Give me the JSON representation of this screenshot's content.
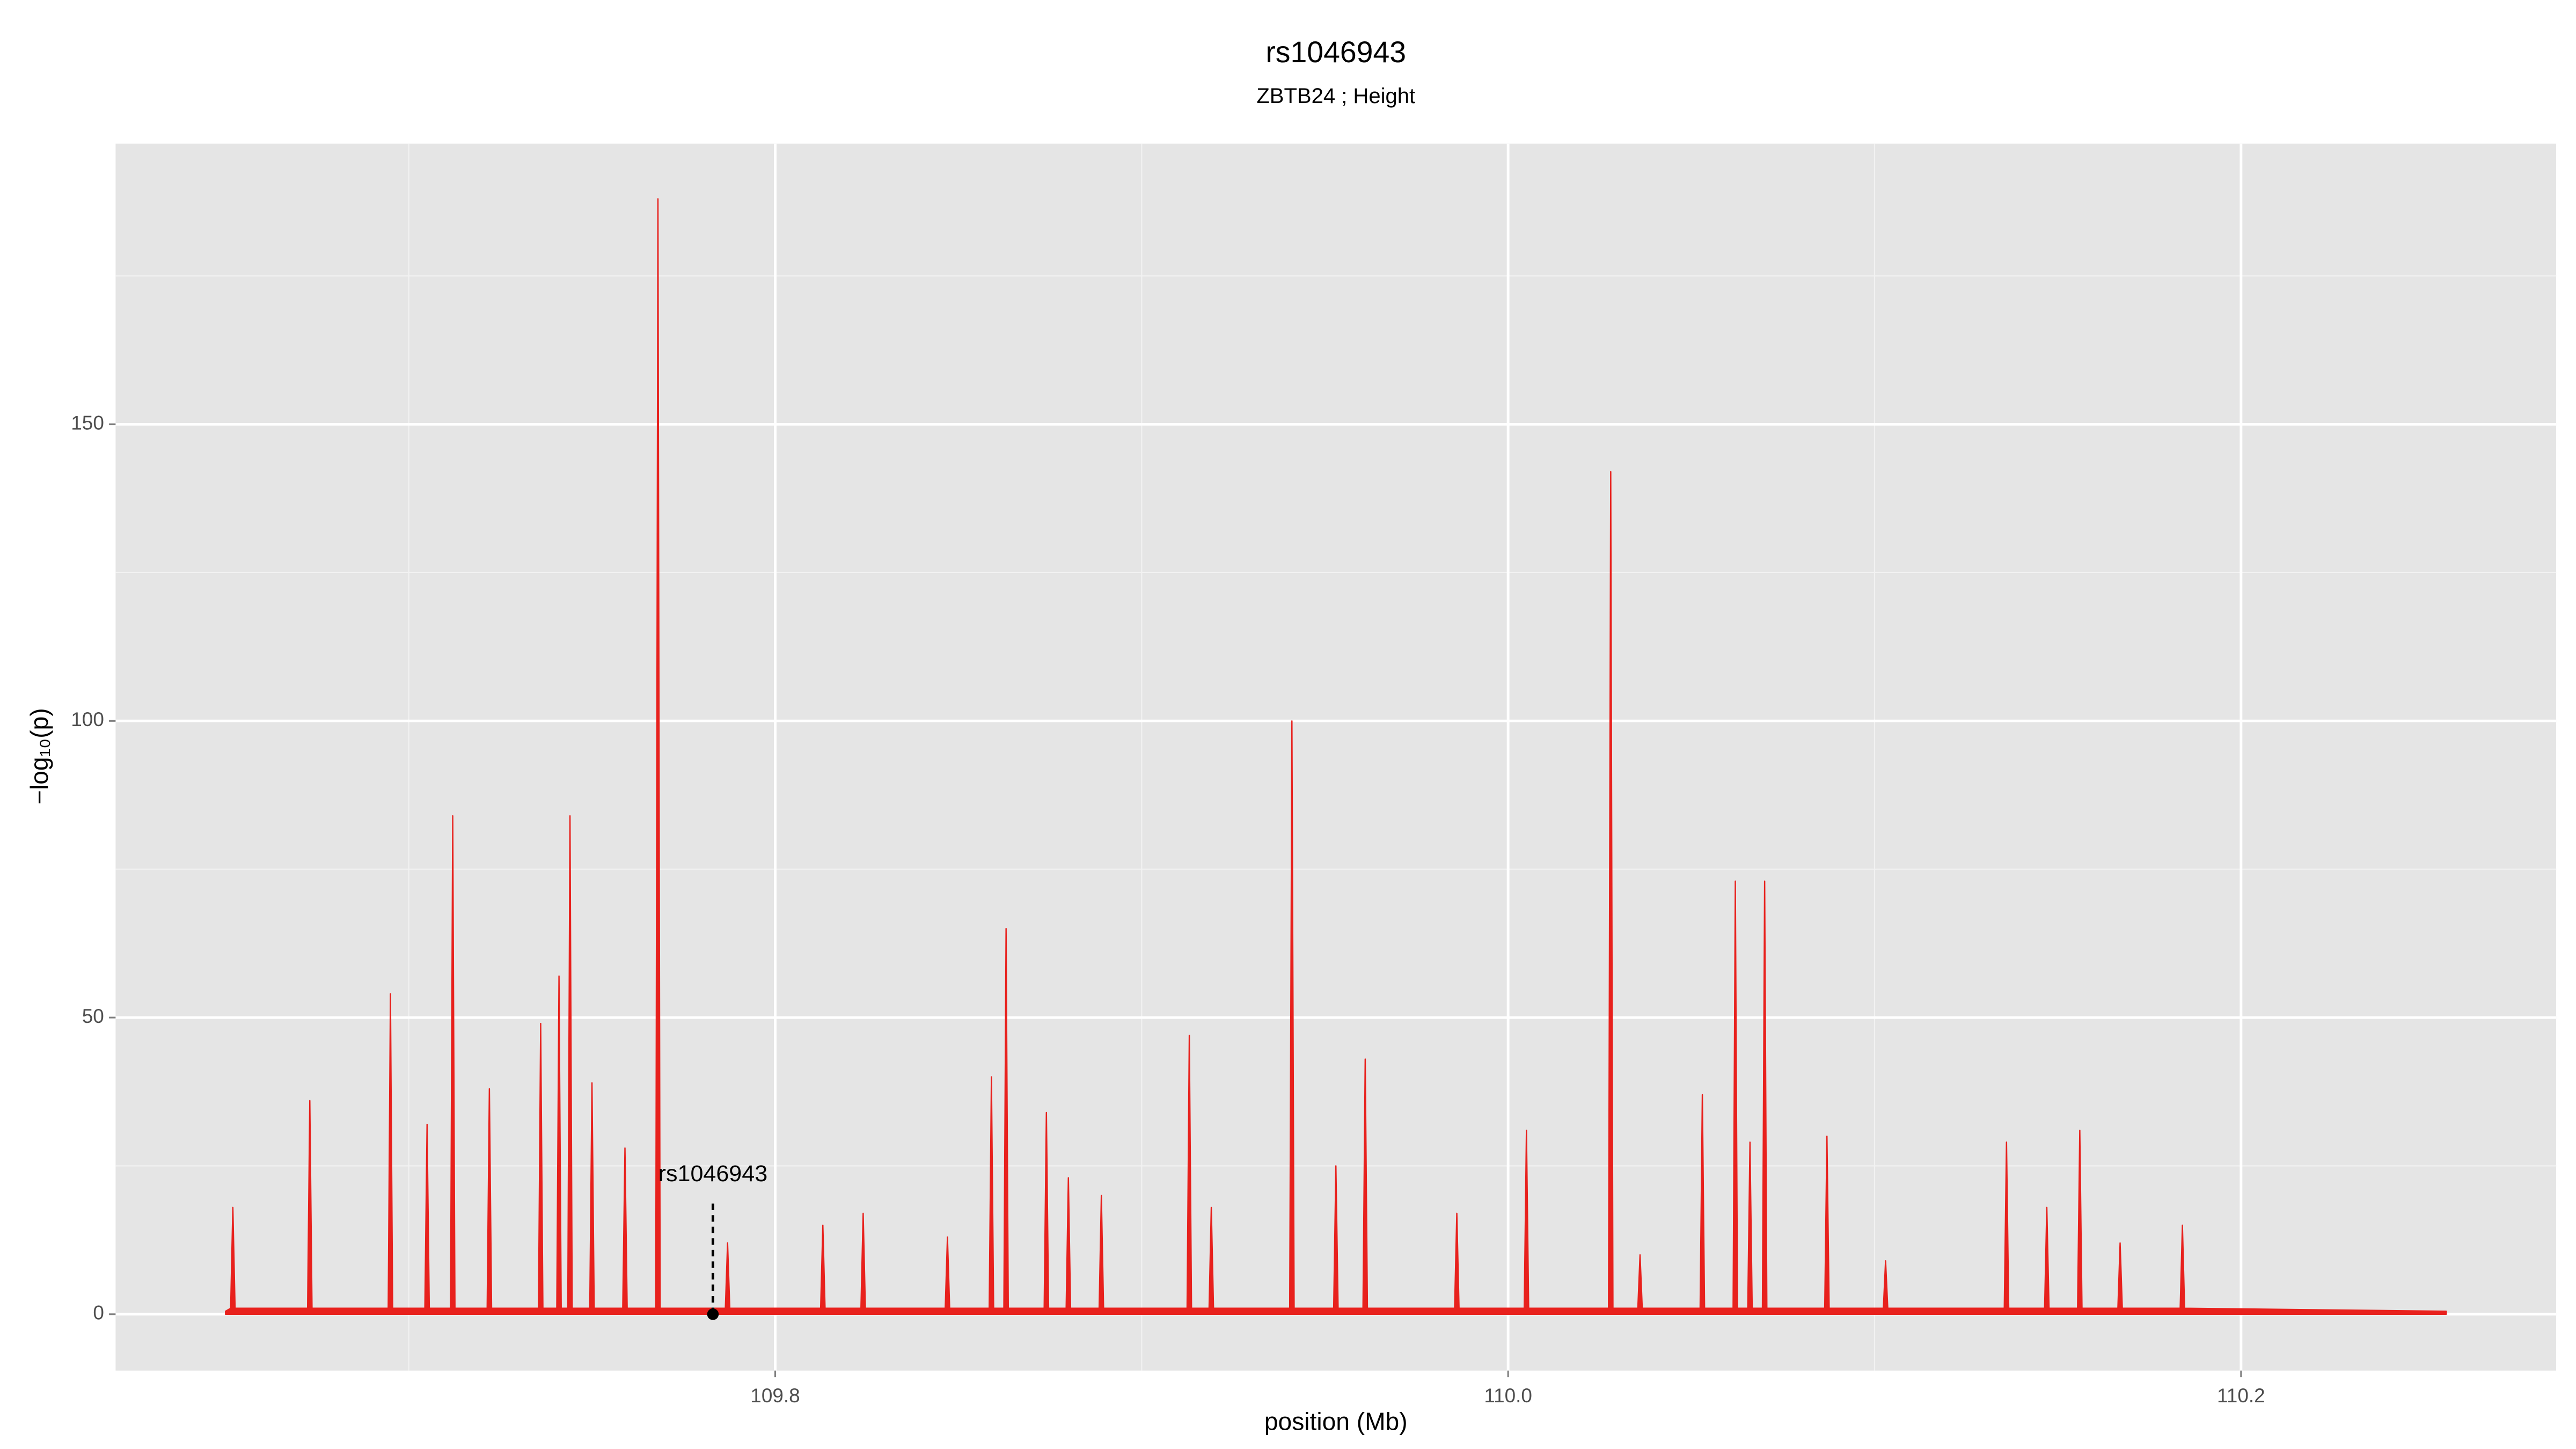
{
  "chart_data": {
    "type": "area",
    "title": "rs1046943",
    "subtitle": "ZBTB24 ; Height",
    "xlabel": "position (Mb)",
    "ylabel": "−log₁₀(p)",
    "xlim": [
      109.62,
      110.286
    ],
    "ylim": [
      -9.5,
      197.3
    ],
    "xticks": [
      109.8,
      {
        "value": 110,
        "label": "110.0"
      },
      110.2
    ],
    "xminor": [
      109.7,
      109.9,
      110.1
    ],
    "yticks": [
      0,
      50,
      100,
      150
    ],
    "yminor": [
      25,
      75,
      125,
      175
    ],
    "grid": true,
    "series": [
      {
        "color": "#e8211d",
        "x": [
          109.65,
          109.6514,
          109.652,
          109.6526,
          109.6724,
          109.673,
          109.6736,
          109.6944,
          109.695,
          109.6956,
          109.7044,
          109.705,
          109.7056,
          109.7114,
          109.712,
          109.7126,
          109.7214,
          109.722,
          109.7226,
          109.7354,
          109.736,
          109.7366,
          109.7404,
          109.741,
          109.7416,
          109.7434,
          109.744,
          109.7446,
          109.7494,
          109.75,
          109.7506,
          109.7584,
          109.759,
          109.7596,
          109.7674,
          109.768,
          109.7686,
          109.7864,
          109.787,
          109.7876,
          109.8124,
          109.813,
          109.8136,
          109.8234,
          109.824,
          109.8246,
          109.8464,
          109.847,
          109.8476,
          109.8584,
          109.859,
          109.8596,
          109.8624,
          109.863,
          109.8636,
          109.8734,
          109.874,
          109.8746,
          109.8794,
          109.88,
          109.8806,
          109.8884,
          109.889,
          109.8896,
          109.9124,
          109.913,
          109.9136,
          109.9184,
          109.919,
          109.9196,
          109.9404,
          109.941,
          109.9416,
          109.9524,
          109.953,
          109.9536,
          109.9604,
          109.961,
          109.9616,
          109.9854,
          109.986,
          109.9866,
          110.0044,
          110.005,
          110.0056,
          110.0274,
          110.028,
          110.0286,
          110.0354,
          110.036,
          110.0366,
          110.0524,
          110.053,
          110.0536,
          110.0614,
          110.062,
          110.0626,
          110.0654,
          110.066,
          110.0666,
          110.0694,
          110.07,
          110.0706,
          110.0864,
          110.087,
          110.0876,
          110.1024,
          110.103,
          110.1036,
          110.1354,
          110.136,
          110.1366,
          110.1464,
          110.147,
          110.1476,
          110.1554,
          110.156,
          110.1566,
          110.1664,
          110.167,
          110.1676,
          110.1834,
          110.184,
          110.1846,
          110.256
        ],
        "values": [
          0.5,
          1,
          18,
          1,
          1,
          36,
          1,
          1,
          54,
          1,
          1,
          32,
          1,
          1,
          84,
          1,
          1,
          38,
          1,
          1,
          49,
          1,
          1,
          57,
          1,
          1,
          84,
          1,
          1,
          39,
          1,
          1,
          28,
          1,
          1,
          188,
          1,
          1,
          12,
          1,
          1,
          15,
          1,
          1,
          17,
          1,
          1,
          13,
          1,
          1,
          40,
          1,
          1,
          65,
          1,
          1,
          34,
          1,
          1,
          23,
          1,
          1,
          20,
          1,
          1,
          47,
          1,
          1,
          18,
          1,
          1,
          100,
          1,
          1,
          25,
          1,
          1,
          43,
          1,
          1,
          17,
          1,
          1,
          31,
          1,
          1,
          142,
          1,
          1,
          10,
          1,
          1,
          37,
          1,
          1,
          73,
          1,
          1,
          29,
          1,
          1,
          73,
          1,
          1,
          30,
          1,
          1,
          9,
          1,
          1,
          29,
          1,
          1,
          18,
          1,
          1,
          31,
          1,
          1,
          12,
          1,
          1,
          15,
          1,
          0.5
        ]
      }
    ],
    "annotation": {
      "text": "rs1046943",
      "x": 109.783,
      "y": 0,
      "y_end": 19
    }
  }
}
